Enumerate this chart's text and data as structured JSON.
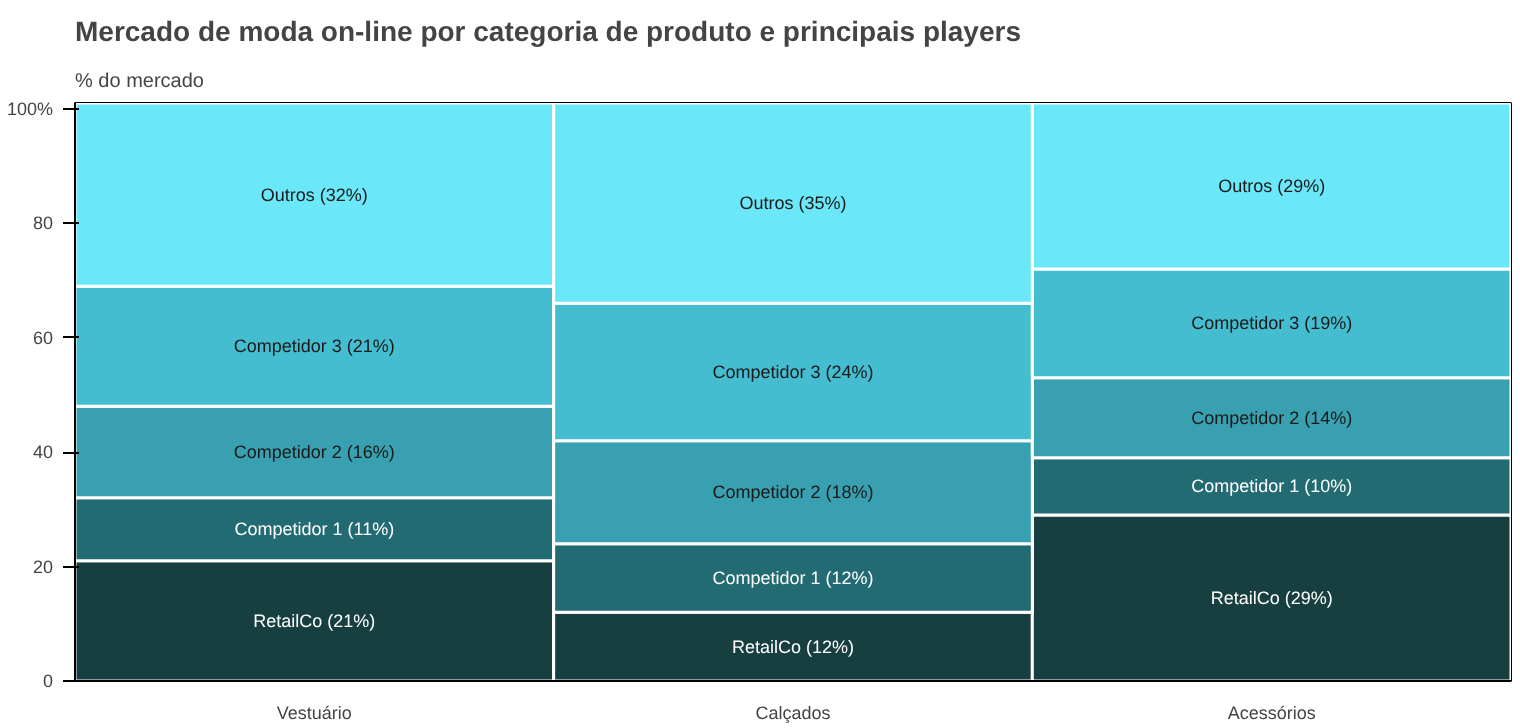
{
  "chart_data": {
    "type": "bar",
    "stacked": true,
    "title": "Mercado de moda on-line por categoria de produto e principais players",
    "subtitle": "% do mercado",
    "categories": [
      "Vestuário",
      "Calçados",
      "Acessórios"
    ],
    "series": [
      {
        "color": "#173f40",
        "values": [
          21,
          12,
          29
        ],
        "value_labels": [
          "RetailCo (21%)",
          "RetailCo (12%)",
          "RetailCo (29%)"
        ]
      },
      {
        "color": "#236b72",
        "values": [
          11,
          12,
          10
        ],
        "value_labels": [
          "Competidor 1 (11%)",
          "Competidor 1 (12%)",
          "Competidor 1 (10%)"
        ]
      },
      {
        "color": "#38a0b0",
        "values": [
          16,
          18,
          14
        ],
        "value_labels": [
          "Competidor 2 (16%)",
          "Competidor 2 (18%)",
          "Competidor 2 (14%)"
        ]
      },
      {
        "color": "#44bdd0",
        "values": [
          21,
          24,
          19
        ],
        "value_labels": [
          "Competidor 3 (21%)",
          "Competidor 3 (24%)",
          "Competidor 3 (19%)"
        ]
      },
      {
        "color": "#6ae8f9",
        "values": [
          32,
          35,
          29
        ],
        "value_labels": [
          "Outros (32%)",
          "Outros (35%)",
          "Outros (29%)"
        ]
      }
    ],
    "ylim": [
      0,
      101
    ],
    "yticks": [
      0,
      20,
      40,
      60,
      80,
      {
        "value": 100,
        "label": "100%"
      }
    ]
  }
}
